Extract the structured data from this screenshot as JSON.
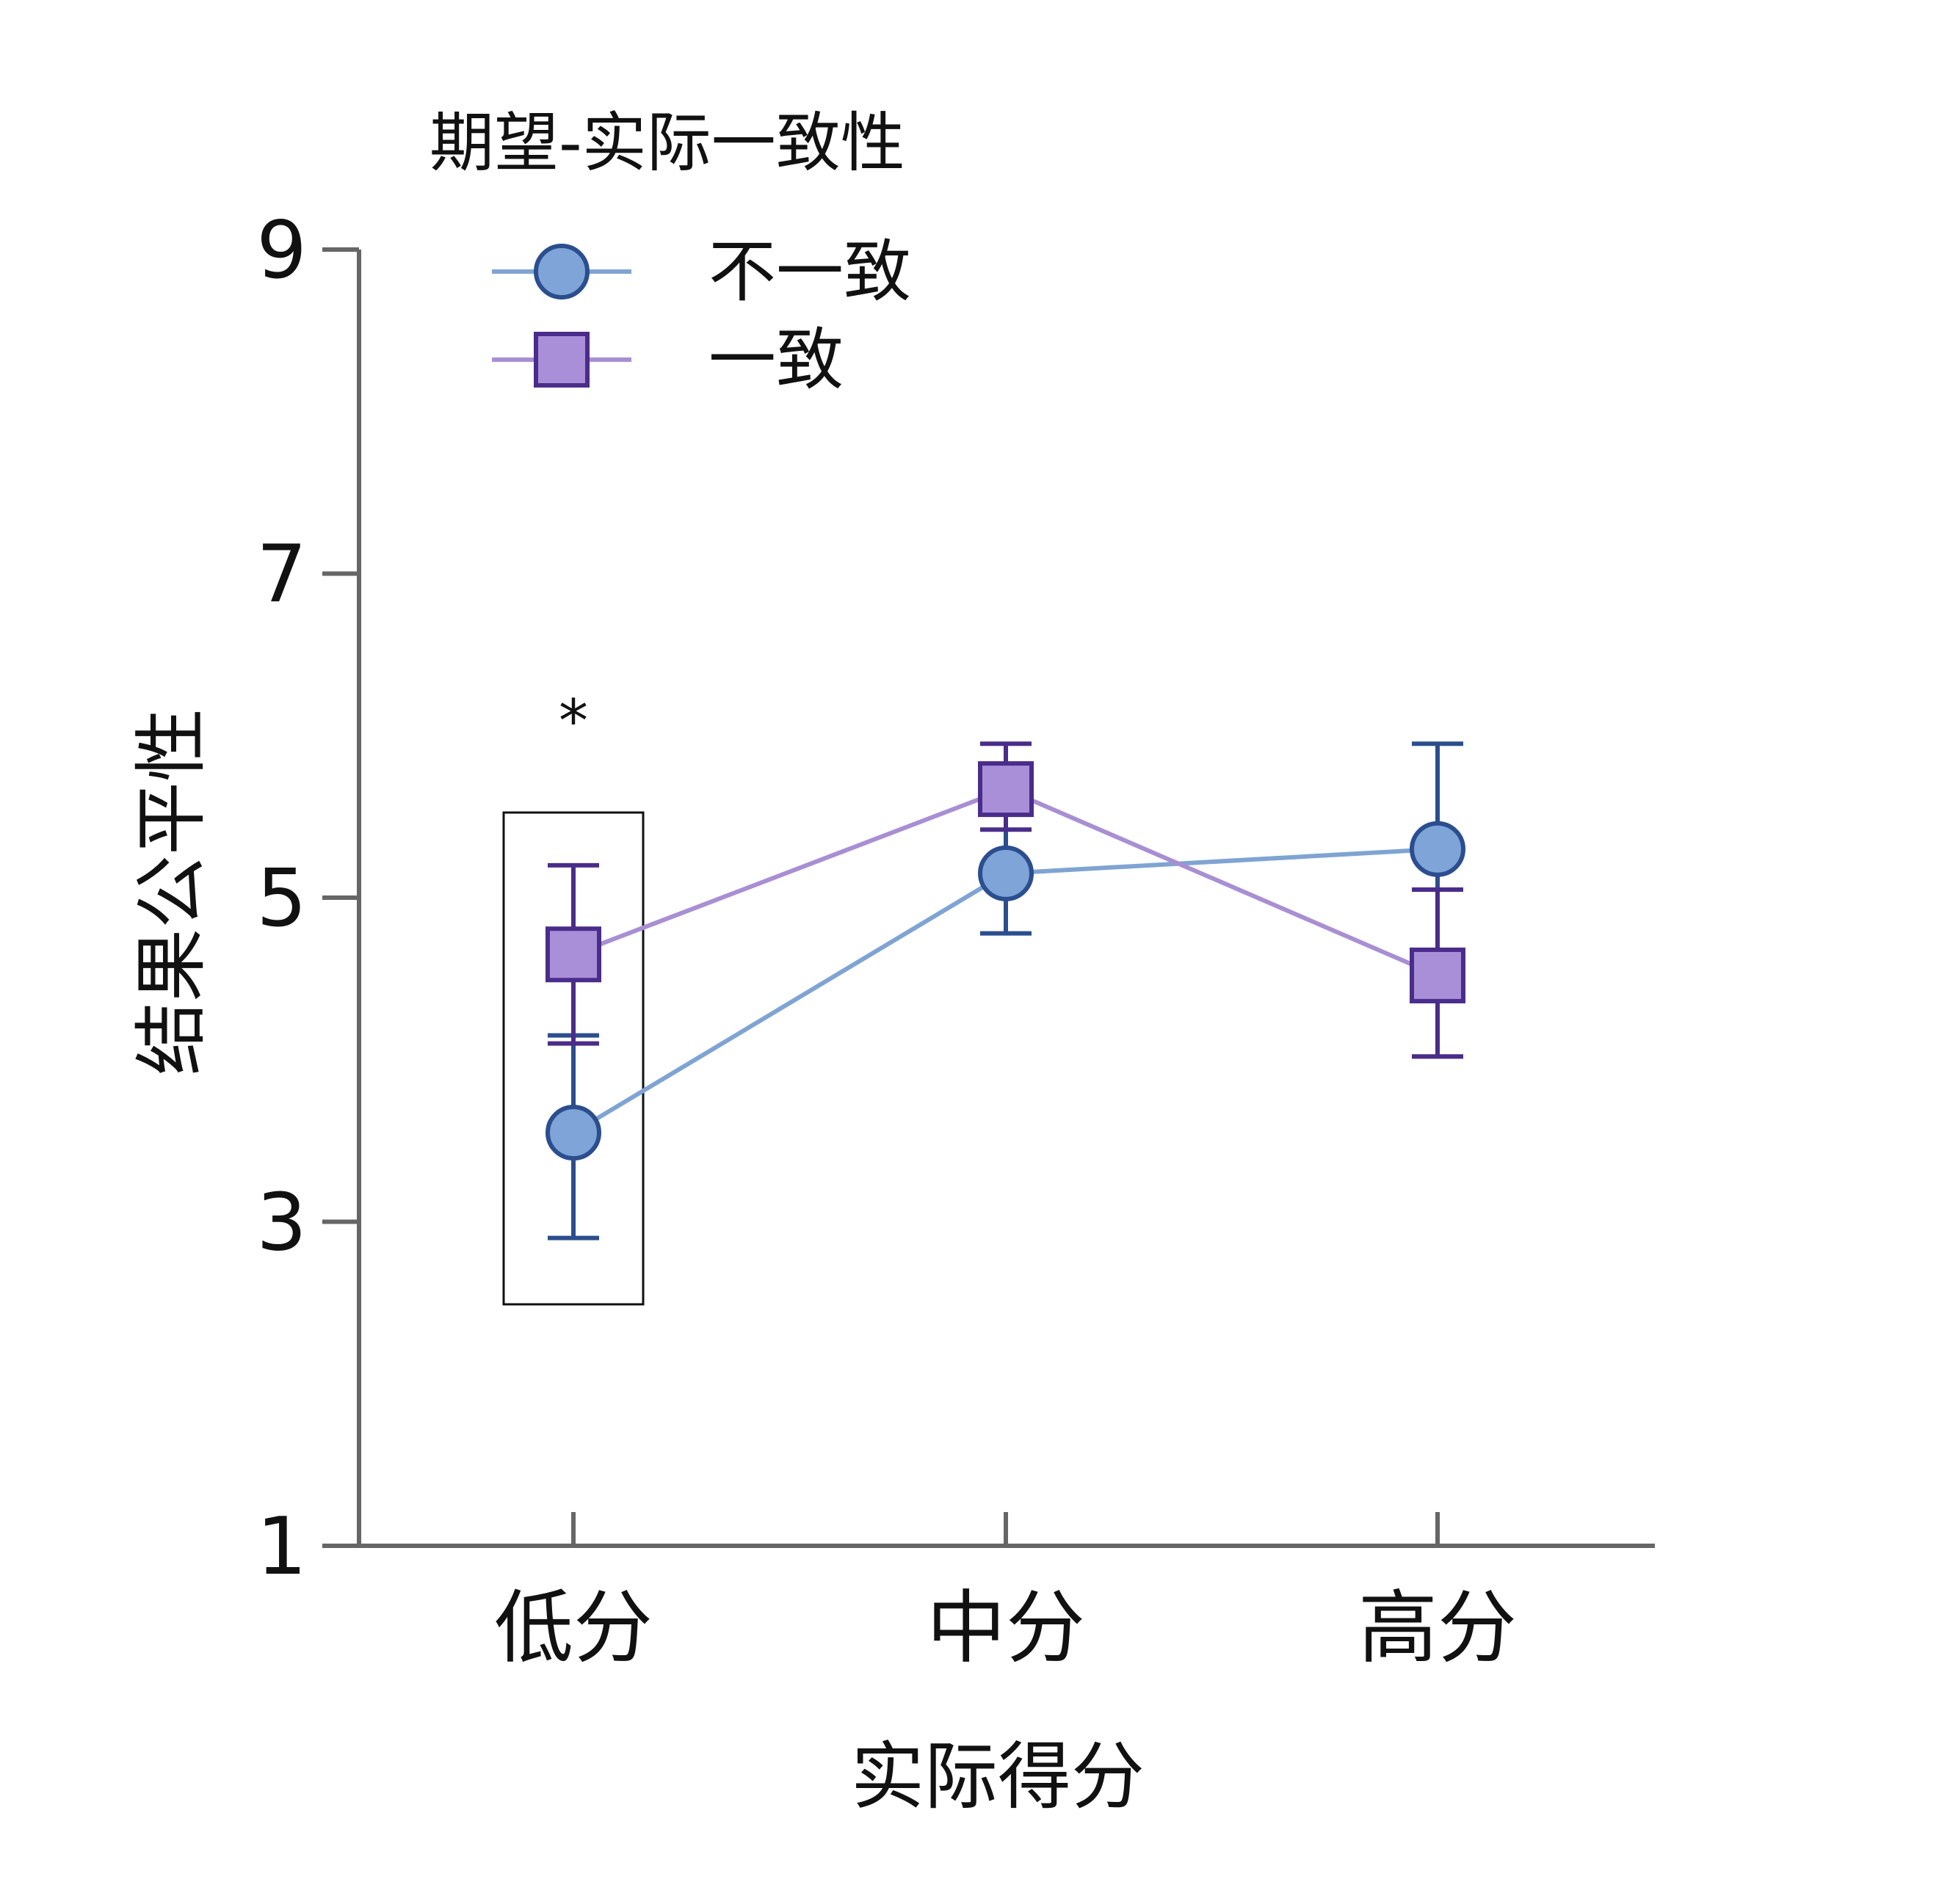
{
  "chart_data": {
    "type": "line",
    "xlabel": "实际得分",
    "ylabel": "结果公平性",
    "categories": [
      "低分",
      "中分",
      "高分"
    ],
    "ylim": [
      1,
      9
    ],
    "yticks": [
      1,
      3,
      5,
      7,
      9
    ],
    "grid": false,
    "legend": {
      "title": "期望-实际一致性",
      "placement": "top-left"
    },
    "series": [
      {
        "name": "不一致",
        "marker": "circle",
        "values": [
          3.55,
          5.15,
          5.3
        ],
        "error_low": [
          2.9,
          4.78,
          4.02
        ],
        "error_high": [
          4.15,
          5.52,
          5.95
        ],
        "line_color": "#7fa4d3",
        "fill_color": "#7fa4d8",
        "edge_color": "#2b4e8e"
      },
      {
        "name": "一致",
        "marker": "square",
        "values": [
          4.65,
          5.67,
          4.52
        ],
        "error_low": [
          4.1,
          5.42,
          4.02
        ],
        "error_high": [
          5.2,
          5.95,
          5.05
        ],
        "line_color": "#a88fd3",
        "fill_color": "#a88fd8",
        "edge_color": "#4a2c8a"
      }
    ],
    "annotations": [
      {
        "text": "*",
        "category": "低分",
        "highlight_box": true
      }
    ],
    "colors": {
      "axis": "#666666"
    }
  }
}
